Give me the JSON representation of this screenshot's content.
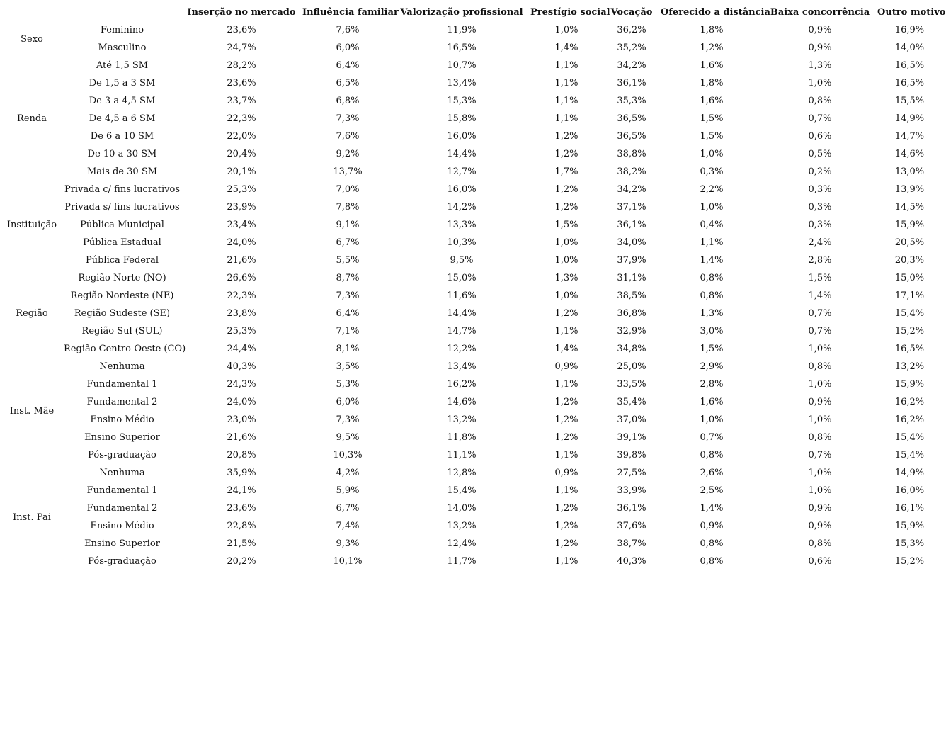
{
  "chart_data": {
    "type": "table",
    "title": "",
    "columns": [
      "Inserção no mercado",
      "Influência familiar",
      "Valorização profissional",
      "Prestígio social",
      "Vocação",
      "Oferecido a distância",
      "Baixa concorrência",
      "Outro motivo"
    ],
    "groups": [
      {
        "label": "Sexo",
        "rows": [
          {
            "label": "Feminino",
            "values": [
              "23,6%",
              "7,6%",
              "11,9%",
              "1,0%",
              "36,2%",
              "1,8%",
              "0,9%",
              "16,9%"
            ]
          },
          {
            "label": "Masculino",
            "values": [
              "24,7%",
              "6,0%",
              "16,5%",
              "1,4%",
              "35,2%",
              "1,2%",
              "0,9%",
              "14,0%"
            ]
          }
        ]
      },
      {
        "label": "Renda",
        "rows": [
          {
            "label": "Até 1,5 SM",
            "values": [
              "28,2%",
              "6,4%",
              "10,7%",
              "1,1%",
              "34,2%",
              "1,6%",
              "1,3%",
              "16,5%"
            ]
          },
          {
            "label": "De 1,5 a 3 SM",
            "values": [
              "23,6%",
              "6,5%",
              "13,4%",
              "1,1%",
              "36,1%",
              "1,8%",
              "1,0%",
              "16,5%"
            ]
          },
          {
            "label": "De 3 a 4,5 SM",
            "values": [
              "23,7%",
              "6,8%",
              "15,3%",
              "1,1%",
              "35,3%",
              "1,6%",
              "0,8%",
              "15,5%"
            ]
          },
          {
            "label": "De 4,5 a 6 SM",
            "values": [
              "22,3%",
              "7,3%",
              "15,8%",
              "1,1%",
              "36,5%",
              "1,5%",
              "0,7%",
              "14,9%"
            ]
          },
          {
            "label": "De 6 a 10 SM",
            "values": [
              "22,0%",
              "7,6%",
              "16,0%",
              "1,2%",
              "36,5%",
              "1,5%",
              "0,6%",
              "14,7%"
            ]
          },
          {
            "label": "De 10 a 30 SM",
            "values": [
              "20,4%",
              "9,2%",
              "14,4%",
              "1,2%",
              "38,8%",
              "1,0%",
              "0,5%",
              "14,6%"
            ]
          },
          {
            "label": "Mais de 30 SM",
            "values": [
              "20,1%",
              "13,7%",
              "12,7%",
              "1,7%",
              "38,2%",
              "0,3%",
              "0,2%",
              "13,0%"
            ]
          }
        ]
      },
      {
        "label": "Instituição",
        "rows": [
          {
            "label": "Privada c/ fins lucrativos",
            "values": [
              "25,3%",
              "7,0%",
              "16,0%",
              "1,2%",
              "34,2%",
              "2,2%",
              "0,3%",
              "13,9%"
            ]
          },
          {
            "label": "Privada s/ fins lucrativos",
            "values": [
              "23,9%",
              "7,8%",
              "14,2%",
              "1,2%",
              "37,1%",
              "1,0%",
              "0,3%",
              "14,5%"
            ]
          },
          {
            "label": "Pública Municipal",
            "values": [
              "23,4%",
              "9,1%",
              "13,3%",
              "1,5%",
              "36,1%",
              "0,4%",
              "0,3%",
              "15,9%"
            ]
          },
          {
            "label": "Pública Estadual",
            "values": [
              "24,0%",
              "6,7%",
              "10,3%",
              "1,0%",
              "34,0%",
              "1,1%",
              "2,4%",
              "20,5%"
            ]
          },
          {
            "label": "Pública Federal",
            "values": [
              "21,6%",
              "5,5%",
              "9,5%",
              "1,0%",
              "37,9%",
              "1,4%",
              "2,8%",
              "20,3%"
            ]
          }
        ]
      },
      {
        "label": "Região",
        "rows": [
          {
            "label": "Região Norte (NO)",
            "values": [
              "26,6%",
              "8,7%",
              "15,0%",
              "1,3%",
              "31,1%",
              "0,8%",
              "1,5%",
              "15,0%"
            ]
          },
          {
            "label": "Região Nordeste (NE)",
            "values": [
              "22,3%",
              "7,3%",
              "11,6%",
              "1,0%",
              "38,5%",
              "0,8%",
              "1,4%",
              "17,1%"
            ]
          },
          {
            "label": "Região Sudeste (SE)",
            "values": [
              "23,8%",
              "6,4%",
              "14,4%",
              "1,2%",
              "36,8%",
              "1,3%",
              "0,7%",
              "15,4%"
            ]
          },
          {
            "label": "Região Sul (SUL)",
            "values": [
              "25,3%",
              "7,1%",
              "14,7%",
              "1,1%",
              "32,9%",
              "3,0%",
              "0,7%",
              "15,2%"
            ]
          },
          {
            "label": "Região Centro-Oeste (CO)",
            "values": [
              "24,4%",
              "8,1%",
              "12,2%",
              "1,4%",
              "34,8%",
              "1,5%",
              "1,0%",
              "16,5%"
            ]
          }
        ]
      },
      {
        "label": "Inst. Mãe",
        "rows": [
          {
            "label": "Nenhuma",
            "values": [
              "40,3%",
              "3,5%",
              "13,4%",
              "0,9%",
              "25,0%",
              "2,9%",
              "0,8%",
              "13,2%"
            ]
          },
          {
            "label": "Fundamental 1",
            "values": [
              "24,3%",
              "5,3%",
              "16,2%",
              "1,1%",
              "33,5%",
              "2,8%",
              "1,0%",
              "15,9%"
            ]
          },
          {
            "label": "Fundamental 2",
            "values": [
              "24,0%",
              "6,0%",
              "14,6%",
              "1,2%",
              "35,4%",
              "1,6%",
              "0,9%",
              "16,2%"
            ]
          },
          {
            "label": "Ensino Médio",
            "values": [
              "23,0%",
              "7,3%",
              "13,2%",
              "1,2%",
              "37,0%",
              "1,0%",
              "1,0%",
              "16,2%"
            ]
          },
          {
            "label": "Ensino Superior",
            "values": [
              "21,6%",
              "9,5%",
              "11,8%",
              "1,2%",
              "39,1%",
              "0,7%",
              "0,8%",
              "15,4%"
            ]
          },
          {
            "label": "Pós-graduação",
            "values": [
              "20,8%",
              "10,3%",
              "11,1%",
              "1,1%",
              "39,8%",
              "0,8%",
              "0,7%",
              "15,4%"
            ]
          }
        ]
      },
      {
        "label": "Inst. Pai",
        "rows": [
          {
            "label": "Nenhuma",
            "values": [
              "35,9%",
              "4,2%",
              "12,8%",
              "0,9%",
              "27,5%",
              "2,6%",
              "1,0%",
              "14,9%"
            ]
          },
          {
            "label": "Fundamental 1",
            "values": [
              "24,1%",
              "5,9%",
              "15,4%",
              "1,1%",
              "33,9%",
              "2,5%",
              "1,0%",
              "16,0%"
            ]
          },
          {
            "label": "Fundamental 2",
            "values": [
              "23,6%",
              "6,7%",
              "14,0%",
              "1,2%",
              "36,1%",
              "1,4%",
              "0,9%",
              "16,1%"
            ]
          },
          {
            "label": "Ensino Médio",
            "values": [
              "22,8%",
              "7,4%",
              "13,2%",
              "1,2%",
              "37,6%",
              "0,9%",
              "0,9%",
              "15,9%"
            ]
          },
          {
            "label": "Ensino Superior",
            "values": [
              "21,5%",
              "9,3%",
              "12,4%",
              "1,2%",
              "38,7%",
              "0,8%",
              "0,8%",
              "15,3%"
            ]
          },
          {
            "label": "Pós-graduação",
            "values": [
              "20,2%",
              "10,1%",
              "11,7%",
              "1,1%",
              "40,3%",
              "0,8%",
              "0,6%",
              "15,2%"
            ]
          }
        ]
      }
    ],
    "layout": {
      "grid": "off",
      "value_format": "percent-comma-decimal",
      "text_color": "#111111",
      "background_color": "#ffffff"
    }
  }
}
